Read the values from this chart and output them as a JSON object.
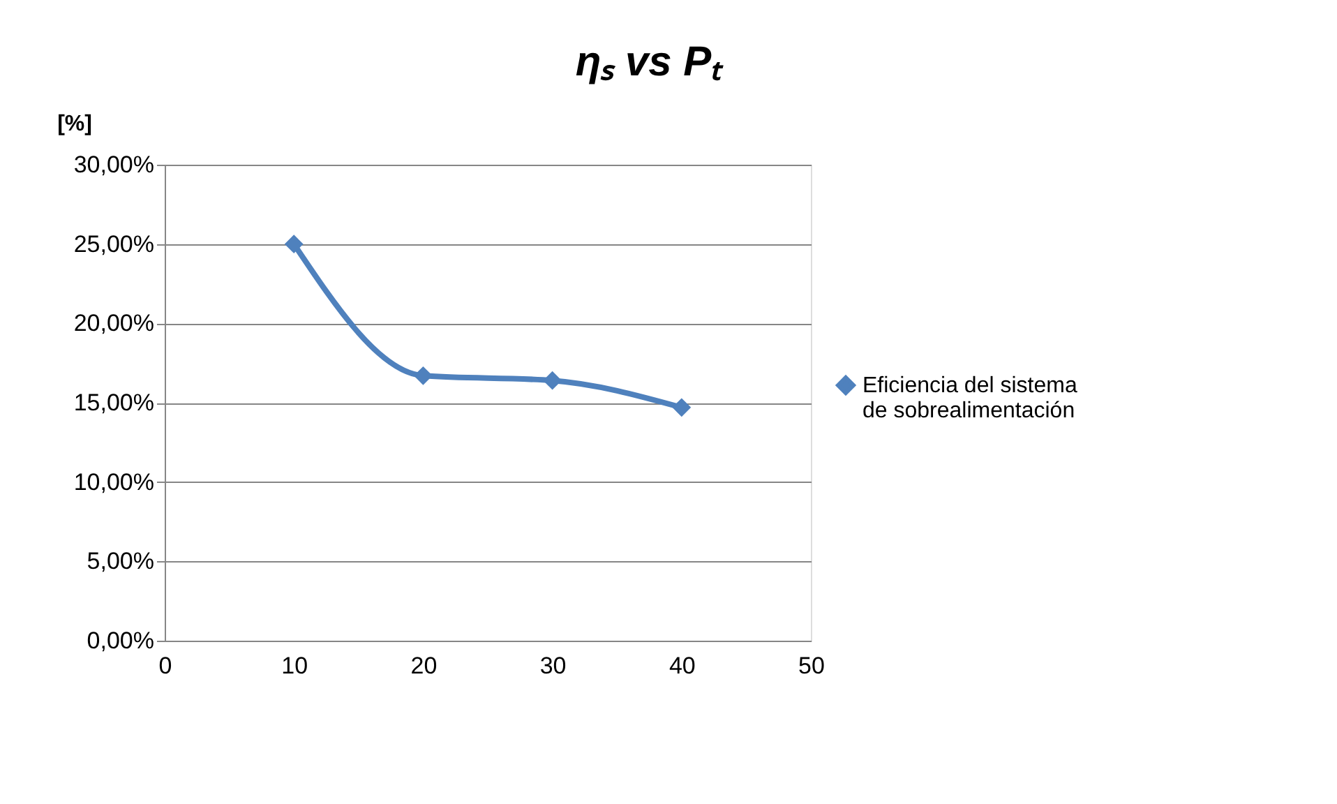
{
  "chart_data": {
    "type": "line",
    "title": "ηₛ vs Pₜ",
    "ylabel": "[%]",
    "x": [
      10,
      20,
      30,
      40
    ],
    "series": [
      {
        "name": "Eficiencia del sistema de sobrealimentación",
        "color": "#4f81bd",
        "values": [
          25.0,
          16.7,
          16.4,
          14.7
        ]
      }
    ],
    "xlim": [
      0,
      50
    ],
    "xticks": [
      0,
      10,
      20,
      30,
      40,
      50
    ],
    "ylim": [
      0,
      30
    ],
    "yticks": [
      {
        "value": 0,
        "label": "0,00%"
      },
      {
        "value": 5,
        "label": "5,00%"
      },
      {
        "value": 10,
        "label": "10,00%"
      },
      {
        "value": 15,
        "label": "15,00%"
      },
      {
        "value": 20,
        "label": "20,00%"
      },
      {
        "value": 25,
        "label": "25,00%"
      },
      {
        "value": 30,
        "label": "30,00%"
      }
    ],
    "grid": "y",
    "legend": "right",
    "marker": "diamond",
    "line_style": "solid"
  }
}
